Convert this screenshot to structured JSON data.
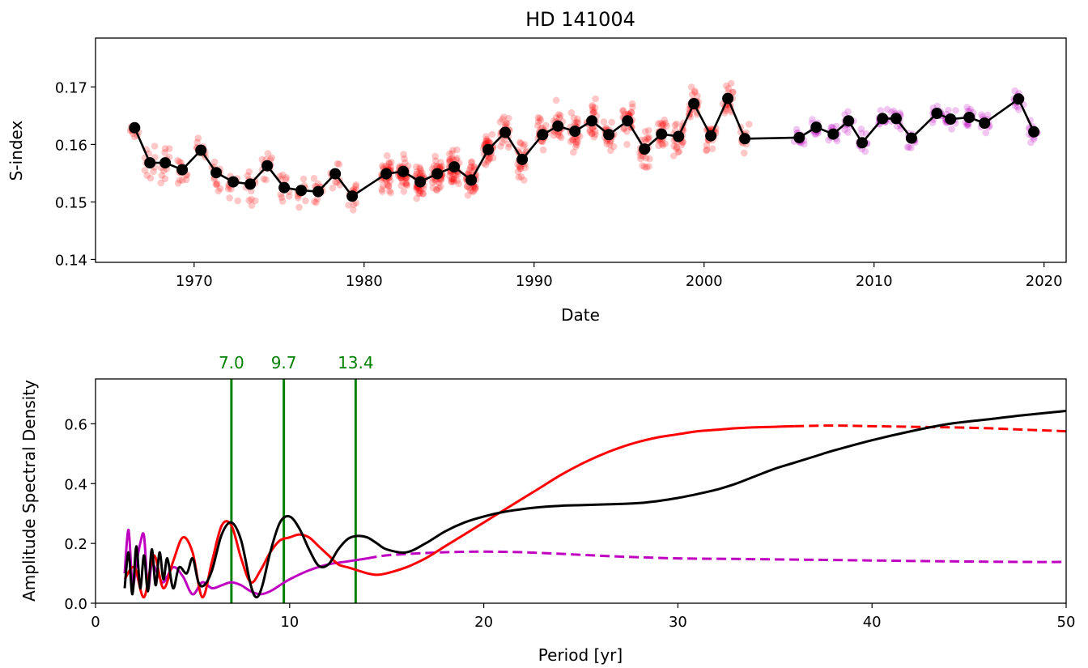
{
  "chart_data": [
    {
      "type": "scatter",
      "title": "HD 141004",
      "xlabel": "Date",
      "ylabel": "S-index",
      "xlim": [
        1964.2,
        2021.3
      ],
      "ylim": [
        0.1395,
        0.1785
      ],
      "xticks": [
        1970,
        1980,
        1990,
        2000,
        2010,
        2020
      ],
      "yticks": [
        0.14,
        0.15,
        0.16,
        0.17
      ],
      "ytick_labels": [
        "0.14",
        "0.15",
        "0.16",
        "0.17"
      ],
      "colors": {
        "mwo": "#ff0000",
        "recent": "#c000c0",
        "mean": "#000000"
      },
      "scatter_alpha": 0.22,
      "series": [
        {
          "role": "seasonal means",
          "color": "#000000",
          "x": [
            1966.5,
            1967.4,
            1968.3,
            1969.3,
            1970.4,
            1971.3,
            1972.3,
            1973.3,
            1974.3,
            1975.3,
            1976.3,
            1977.3,
            1978.3,
            1979.3,
            1981.3,
            1982.3,
            1983.3,
            1984.3,
            1985.3,
            1986.3,
            1987.3,
            1988.3,
            1989.3,
            1990.5,
            1991.4,
            1992.4,
            1993.4,
            1994.4,
            1995.5,
            1996.5,
            1997.5,
            1998.5,
            1999.4,
            2000.4,
            2001.4,
            2002.4,
            2005.6,
            2006.6,
            2007.6,
            2008.5,
            2009.3,
            2010.5,
            2011.3,
            2012.2,
            2013.7,
            2014.5,
            2015.6,
            2016.5,
            2018.5,
            2019.4
          ],
          "y": [
            0.1629,
            0.1568,
            0.1568,
            0.1556,
            0.159,
            0.1551,
            0.1535,
            0.1531,
            0.1563,
            0.1525,
            0.152,
            0.1518,
            0.1549,
            0.151,
            0.1549,
            0.1553,
            0.1535,
            0.1549,
            0.1561,
            0.1538,
            0.1591,
            0.1621,
            0.1574,
            0.1617,
            0.1632,
            0.1623,
            0.1641,
            0.1617,
            0.1641,
            0.1592,
            0.1618,
            0.1614,
            0.1671,
            0.1615,
            0.168,
            0.161,
            0.1612,
            0.163,
            0.1618,
            0.1641,
            0.1603,
            0.1645,
            0.1645,
            0.1611,
            0.1654,
            0.1644,
            0.1647,
            0.1637,
            0.1679,
            0.1622
          ]
        }
      ]
    },
    {
      "type": "line",
      "xlabel": "Period [yr]",
      "ylabel": "Amplitude Spectral Density",
      "xlim": [
        0,
        50
      ],
      "ylim": [
        0,
        0.75
      ],
      "xticks": [
        0,
        10,
        20,
        30,
        40,
        50
      ],
      "yticks": [
        0.0,
        0.2,
        0.4,
        0.6
      ],
      "ytick_labels": [
        "0.0",
        "0.2",
        "0.4",
        "0.6"
      ],
      "annotations": [
        {
          "x": 7.0,
          "label": "7.0"
        },
        {
          "x": 9.7,
          "label": "9.7"
        },
        {
          "x": 13.4,
          "label": "13.4"
        }
      ],
      "annotation_color": "#008000",
      "series": [
        {
          "color": "#ff0000",
          "solid_until": 36,
          "x": [
            1.5,
            2.0,
            2.5,
            3.0,
            3.5,
            4.0,
            4.5,
            5.0,
            5.5,
            6.0,
            6.5,
            7.0,
            7.5,
            8.0,
            8.5,
            9.0,
            9.5,
            10.0,
            10.5,
            11.0,
            11.5,
            12.0,
            12.5,
            13.0,
            13.5,
            14.0,
            14.5,
            15.0,
            16.0,
            17.0,
            18.0,
            19.0,
            20.0,
            21.0,
            22.0,
            23.0,
            24.0,
            25.0,
            26.0,
            27.0,
            28.0,
            29.0,
            30.0,
            31.0,
            32.0,
            33.0,
            34.0,
            35.0,
            36.0,
            38.0,
            40.0,
            42.0,
            44.0,
            46.0,
            48.0,
            50.0
          ],
          "y": [
            0.08,
            0.12,
            0.02,
            0.16,
            0.05,
            0.14,
            0.22,
            0.17,
            0.02,
            0.14,
            0.26,
            0.26,
            0.15,
            0.07,
            0.11,
            0.17,
            0.21,
            0.22,
            0.23,
            0.22,
            0.19,
            0.16,
            0.13,
            0.12,
            0.11,
            0.1,
            0.095,
            0.1,
            0.12,
            0.15,
            0.19,
            0.23,
            0.27,
            0.31,
            0.35,
            0.39,
            0.43,
            0.465,
            0.495,
            0.52,
            0.54,
            0.555,
            0.565,
            0.575,
            0.58,
            0.585,
            0.588,
            0.59,
            0.592,
            0.594,
            0.592,
            0.59,
            0.588,
            0.585,
            0.58,
            0.575
          ]
        },
        {
          "color": "#c000c0",
          "solid_until": 14,
          "x": [
            1.5,
            1.7,
            1.9,
            2.1,
            2.3,
            2.5,
            2.7,
            2.9,
            3.2,
            3.5,
            4.0,
            4.5,
            5.0,
            5.5,
            6.0,
            6.5,
            7.0,
            7.5,
            8.0,
            8.5,
            9.0,
            9.5,
            10.0,
            11.0,
            12.0,
            13.0,
            14.0,
            15.0,
            17.0,
            19.0,
            21.0,
            23.0,
            25.0,
            27.0,
            30.0,
            33.0,
            36.0,
            40.0,
            44.0,
            48.0,
            50.0
          ],
          "y": [
            0.1,
            0.245,
            0.06,
            0.13,
            0.2,
            0.225,
            0.05,
            0.13,
            0.1,
            0.07,
            0.12,
            0.09,
            0.03,
            0.07,
            0.05,
            0.06,
            0.07,
            0.06,
            0.04,
            0.03,
            0.04,
            0.06,
            0.08,
            0.11,
            0.13,
            0.14,
            0.15,
            0.16,
            0.168,
            0.172,
            0.172,
            0.168,
            0.162,
            0.156,
            0.15,
            0.148,
            0.146,
            0.143,
            0.14,
            0.138,
            0.138
          ]
        },
        {
          "color": "#000000",
          "solid_until": 50,
          "x": [
            1.5,
            1.7,
            1.9,
            2.1,
            2.3,
            2.5,
            2.7,
            2.9,
            3.1,
            3.3,
            3.5,
            3.7,
            4.0,
            4.3,
            4.7,
            5.0,
            5.3,
            5.6,
            6.0,
            6.5,
            7.0,
            7.5,
            8.0,
            8.3,
            8.6,
            9.0,
            9.5,
            10.0,
            10.5,
            11.0,
            11.5,
            12.0,
            12.5,
            13.0,
            13.5,
            14.0,
            14.5,
            15.0,
            16.0,
            17.0,
            18.0,
            19.0,
            20.0,
            21.0,
            22.0,
            23.0,
            24.0,
            25.0,
            26.0,
            27.0,
            28.0,
            29.0,
            30.0,
            31.0,
            32.0,
            33.0,
            34.0,
            35.0,
            36.0,
            37.0,
            38.0,
            40.0,
            42.0,
            44.0,
            46.0,
            48.0,
            50.0
          ],
          "y": [
            0.05,
            0.17,
            0.03,
            0.19,
            0.05,
            0.16,
            0.04,
            0.18,
            0.06,
            0.17,
            0.08,
            0.15,
            0.05,
            0.12,
            0.1,
            0.15,
            0.07,
            0.06,
            0.11,
            0.23,
            0.27,
            0.21,
            0.06,
            0.02,
            0.06,
            0.17,
            0.27,
            0.29,
            0.25,
            0.18,
            0.125,
            0.13,
            0.18,
            0.215,
            0.225,
            0.22,
            0.2,
            0.18,
            0.17,
            0.2,
            0.24,
            0.27,
            0.29,
            0.305,
            0.315,
            0.322,
            0.326,
            0.328,
            0.33,
            0.332,
            0.335,
            0.342,
            0.352,
            0.365,
            0.38,
            0.4,
            0.425,
            0.45,
            0.47,
            0.49,
            0.51,
            0.545,
            0.575,
            0.6,
            0.615,
            0.63,
            0.643
          ]
        }
      ]
    }
  ]
}
